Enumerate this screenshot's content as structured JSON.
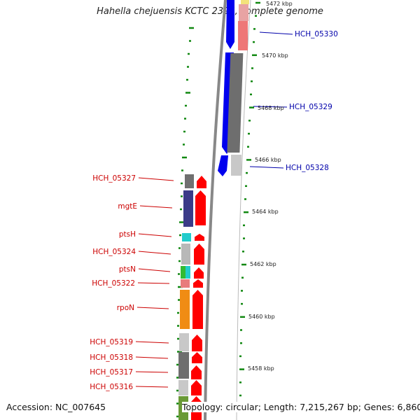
{
  "title": "Hahella chejuensis KCTC 2396, complete genome",
  "footer": {
    "accession": "Accession: NC_007645",
    "topology": "Topology: circular; Length: 7,215,267 bp; Genes: 6,860"
  },
  "scale_labels": [
    "5472 kbp",
    "5470 kbp",
    "5468 kbp",
    "5466 kbp",
    "5464 kbp",
    "5462 kbp",
    "5460 kbp",
    "5458 kbp"
  ],
  "left_genes": [
    "HCH_05327",
    "mgtE",
    "ptsH",
    "HCH_05324",
    "ptsN",
    "HCH_05322",
    "rpoN",
    "HCH_05319",
    "HCH_05318",
    "HCH_05317",
    "HCH_05316"
  ],
  "right_genes": [
    "HCH_05330",
    "HCH_05329",
    "HCH_05328"
  ],
  "colors": {
    "left_label": "#cc0000",
    "right_label": "#0000aa",
    "tick": "#118811",
    "forward_strand": "#ff0000",
    "reverse_strand": "#0000ee"
  }
}
